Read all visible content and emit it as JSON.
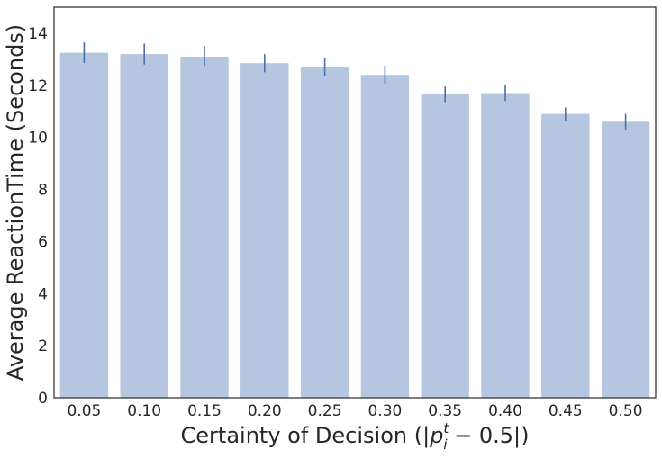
{
  "chart_data": {
    "type": "bar",
    "title": "",
    "xlabel": {
      "prefix": "Certainty of Decision (|",
      "var": "p",
      "sub": "i",
      "sup": "t",
      "suffix": " − 0.5|)"
    },
    "ylabel": "Average ReactionTime (Seconds)",
    "categories": [
      "0.05",
      "0.10",
      "0.15",
      "0.20",
      "0.25",
      "0.30",
      "0.35",
      "0.40",
      "0.45",
      "0.50"
    ],
    "values": [
      13.25,
      13.2,
      13.1,
      12.85,
      12.7,
      12.4,
      11.65,
      11.7,
      10.9,
      10.6
    ],
    "error_bars": [
      [
        12.85,
        13.65
      ],
      [
        12.8,
        13.6
      ],
      [
        12.75,
        13.5
      ],
      [
        12.5,
        13.2
      ],
      [
        12.35,
        13.05
      ],
      [
        12.05,
        12.75
      ],
      [
        11.35,
        11.95
      ],
      [
        11.4,
        12.0
      ],
      [
        10.65,
        11.15
      ],
      [
        10.3,
        10.9
      ]
    ],
    "ylim": [
      0,
      15
    ],
    "yticks": [
      0,
      2,
      4,
      6,
      8,
      10,
      12,
      14
    ],
    "grid": false,
    "colors": {
      "bar": "#b7c6e0",
      "error": "#4c6fa8",
      "frame": "#262626"
    }
  }
}
